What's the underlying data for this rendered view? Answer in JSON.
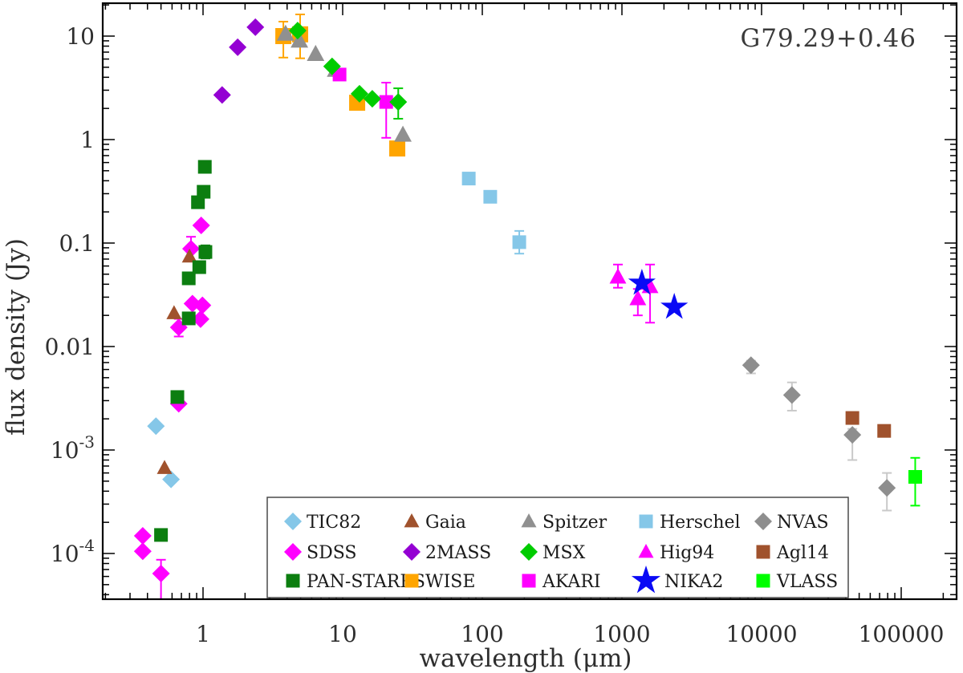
{
  "chart_data": {
    "type": "scatter",
    "title": "G79.29+0.46",
    "xlabel": "wavelength (μm)",
    "ylabel": "flux density (Jy)",
    "x_scale": "log",
    "y_scale": "log",
    "xlim": [
      0.19,
      250000
    ],
    "ylim": [
      3.6e-05,
      21
    ],
    "grid": false,
    "legend_position": "bottom-center-inside",
    "x_ticks": [
      {
        "v": 1,
        "label": "1"
      },
      {
        "v": 10,
        "label": "10"
      },
      {
        "v": 100,
        "label": "100"
      },
      {
        "v": 1000,
        "label": "1000"
      },
      {
        "v": 10000,
        "label": "10000"
      },
      {
        "v": 100000,
        "label": "100000"
      }
    ],
    "y_ticks": [
      {
        "v": 10,
        "label": "10"
      },
      {
        "v": 1,
        "label": "1"
      },
      {
        "v": 0.1,
        "label": "0.1"
      },
      {
        "v": 0.01,
        "label": "0.01"
      },
      {
        "v": 0.001,
        "label": "10",
        "sup": "-3"
      },
      {
        "v": 0.0001,
        "label": "10",
        "sup": "-4"
      }
    ],
    "draw_order": [
      "Herschel",
      "TIC82",
      "SDSS",
      "Gaia",
      "PAN-STARRS",
      "2MASS",
      "WISE",
      "Spitzer",
      "AKARI",
      "MSX",
      "NVAS",
      "Agl14",
      "VLASS",
      "Hig94",
      "NIKA2"
    ],
    "series": [
      {
        "name": "TIC82",
        "shape": "diamond",
        "color": "#85C7E8",
        "msize": 11,
        "points": [
          [
            0.46,
            0.0017
          ],
          [
            0.59,
            0.00052
          ]
        ]
      },
      {
        "name": "Gaia",
        "shape": "triangle",
        "color": "#A0522D",
        "msize": 10,
        "points": [
          [
            0.53,
            0.00067
          ],
          [
            0.62,
            0.021
          ],
          [
            0.8,
            0.074
          ]
        ]
      },
      {
        "name": "Spitzer",
        "shape": "triangle",
        "color": "#909090",
        "msize": 11.5,
        "points": [
          [
            3.9,
            10.5
          ],
          [
            4.9,
            9.0
          ],
          [
            6.4,
            6.7
          ],
          [
            8.9,
            4.7
          ],
          [
            27,
            1.11
          ]
        ]
      },
      {
        "name": "Herschel",
        "shape": "square",
        "color": "#85C7E8",
        "msize": 8.5,
        "points": [
          [
            80,
            0.42
          ],
          [
            114,
            0.28
          ],
          [
            184,
            0.102,
            0.079,
            0.131
          ]
        ]
      },
      {
        "name": "NVAS",
        "shape": "diamond",
        "color": "#8E8E8E",
        "err_color": "#C9C9C9",
        "msize": 11,
        "points": [
          [
            8400,
            0.0066,
            0.0055,
            0.0073
          ],
          [
            16500,
            0.0034,
            0.0024,
            0.0045
          ],
          [
            44700,
            0.0014,
            0.0008,
            0.0016
          ],
          [
            79000,
            0.00043,
            0.00026,
            0.0006
          ]
        ]
      },
      {
        "name": "SDSS",
        "shape": "diamond",
        "color": "#FF00FF",
        "msize": 11,
        "points": [
          [
            0.37,
            0.000148
          ],
          [
            0.37,
            0.000105
          ],
          [
            0.5,
            6.4e-05,
            3.6e-05,
            8.7e-05
          ],
          [
            0.67,
            0.0028
          ],
          [
            0.67,
            0.0153,
            0.0125,
            0.0185
          ],
          [
            0.82,
            0.088,
            0.067,
            0.115
          ],
          [
            0.84,
            0.026
          ],
          [
            0.96,
            0.0184
          ],
          [
            0.97,
            0.148
          ],
          [
            0.99,
            0.025
          ]
        ]
      },
      {
        "name": "2MASS",
        "shape": "diamond",
        "color": "#9400D3",
        "msize": 11,
        "points": [
          [
            1.37,
            2.7
          ],
          [
            1.77,
            7.8
          ],
          [
            2.37,
            12.2
          ]
        ]
      },
      {
        "name": "MSX",
        "shape": "diamond",
        "color": "#00CC00",
        "msize": 11,
        "points": [
          [
            4.76,
            11.3
          ],
          [
            8.4,
            5.1
          ],
          [
            13.2,
            2.77
          ],
          [
            16.3,
            2.48
          ],
          [
            25,
            2.31,
            1.59,
            3.13
          ]
        ]
      },
      {
        "name": "Hig94",
        "shape": "triangle",
        "color": "#FF00FF",
        "msize": 11,
        "points": [
          [
            936,
            0.047,
            0.037,
            0.062
          ],
          [
            1300,
            0.029,
            0.02,
            0.036
          ],
          [
            1590,
            0.038,
            0.017,
            0.062
          ]
        ]
      },
      {
        "name": "Agl14",
        "shape": "square",
        "color": "#A0522D",
        "msize": 8.5,
        "points": [
          [
            44700,
            0.00204
          ],
          [
            75500,
            0.00153
          ]
        ]
      },
      {
        "name": "PAN-STARRS",
        "shape": "square",
        "color": "#0C7E10",
        "msize": 8.5,
        "points": [
          [
            0.5,
            0.000151
          ],
          [
            0.655,
            0.00325
          ],
          [
            0.79,
            0.0187
          ],
          [
            0.79,
            0.0456
          ],
          [
            0.94,
            0.0585
          ],
          [
            1.04,
            0.082,
            0.071,
            0.095
          ],
          [
            0.92,
            0.248
          ],
          [
            1.01,
            0.313
          ],
          [
            1.03,
            0.545
          ]
        ]
      },
      {
        "name": "WISE",
        "shape": "square",
        "color": "#FFA500",
        "msize": 10,
        "points": [
          [
            3.76,
            10.0,
            6.2,
            13.8
          ],
          [
            4.96,
            10.4,
            6.1,
            16.2
          ],
          [
            12.7,
            2.27
          ],
          [
            24.6,
            0.82
          ]
        ]
      },
      {
        "name": "AKARI",
        "shape": "square",
        "color": "#FF00FF",
        "msize": 8.5,
        "points": [
          [
            9.5,
            4.25
          ],
          [
            20.5,
            2.31,
            1.04,
            3.55
          ]
        ]
      },
      {
        "name": "NIKA2",
        "shape": "star",
        "color": "#0A0AF5",
        "msize": 18,
        "points": [
          [
            1390,
            0.041
          ],
          [
            2370,
            0.024
          ]
        ]
      },
      {
        "name": "VLASS",
        "shape": "square",
        "color": "#00FF00",
        "msize": 8.5,
        "points": [
          [
            126000,
            0.00055,
            0.00029,
            0.00084
          ]
        ]
      }
    ]
  }
}
